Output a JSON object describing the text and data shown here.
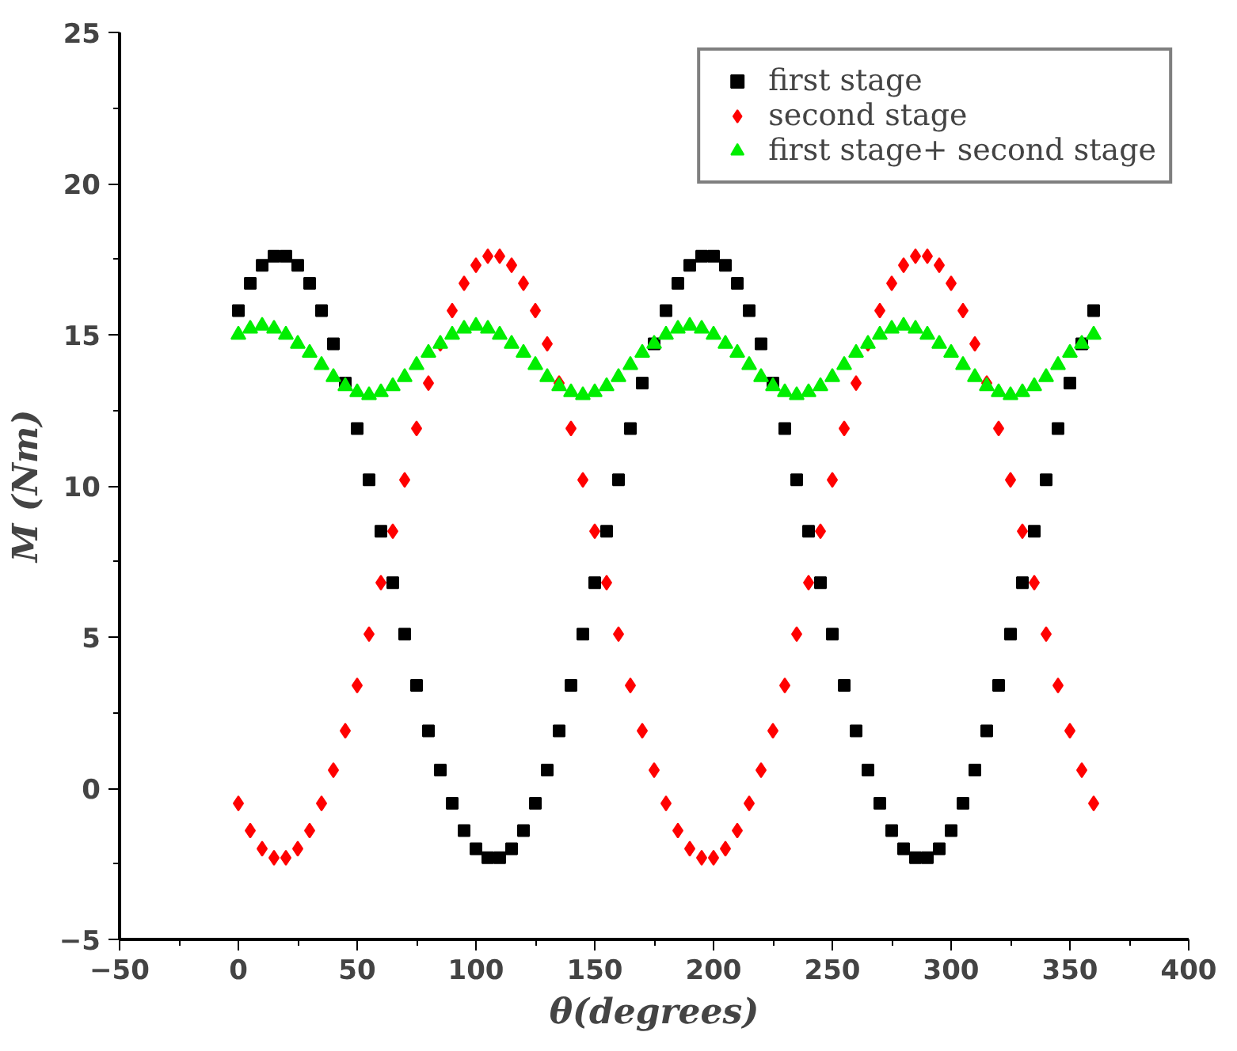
{
  "chart_data": {
    "type": "scatter",
    "xlabel": "θ(degrees)",
    "ylabel": "M (Nm)",
    "x": [
      0,
      5,
      10,
      15,
      20,
      25,
      30,
      35,
      40,
      45,
      50,
      55,
      60,
      65,
      70,
      75,
      80,
      85,
      90,
      95,
      100,
      105,
      110,
      115,
      120,
      125,
      130,
      135,
      140,
      145,
      150,
      155,
      160,
      165,
      170,
      175,
      180,
      185,
      190,
      195,
      200,
      205,
      210,
      215,
      220,
      225,
      230,
      235,
      240,
      245,
      250,
      255,
      260,
      265,
      270,
      275,
      280,
      285,
      290,
      295,
      300,
      305,
      310,
      315,
      320,
      325,
      330,
      335,
      340,
      345,
      350,
      355,
      360
    ],
    "series": [
      {
        "name": "first stage",
        "color": "#000000",
        "marker": "square",
        "values": [
          15.8,
          16.7,
          17.3,
          17.6,
          17.6,
          17.3,
          16.7,
          15.8,
          14.7,
          13.4,
          11.9,
          10.2,
          8.5,
          6.8,
          5.1,
          3.4,
          1.9,
          0.6,
          -0.5,
          -1.4,
          -2.0,
          -2.3,
          -2.3,
          -2.0,
          -1.4,
          -0.5,
          0.6,
          1.9,
          3.4,
          5.1,
          6.8,
          8.5,
          10.2,
          11.9,
          13.4,
          14.7,
          15.8,
          16.7,
          17.3,
          17.6,
          17.6,
          17.3,
          16.7,
          15.8,
          14.7,
          13.4,
          11.9,
          10.2,
          8.5,
          6.8,
          5.1,
          3.4,
          1.9,
          0.6,
          -0.5,
          -1.4,
          -2.0,
          -2.3,
          -2.3,
          -2.0,
          -1.4,
          -0.5,
          0.6,
          1.9,
          3.4,
          5.1,
          6.8,
          8.5,
          10.2,
          11.9,
          13.4,
          14.7,
          15.8
        ]
      },
      {
        "name": "second stage",
        "color": "#ff0000",
        "marker": "diamond",
        "values": [
          -0.5,
          -1.4,
          -2.0,
          -2.3,
          -2.3,
          -2.0,
          -1.4,
          -0.5,
          0.6,
          1.9,
          3.4,
          5.1,
          6.8,
          8.5,
          10.2,
          11.9,
          13.4,
          14.7,
          15.8,
          16.7,
          17.3,
          17.6,
          17.6,
          17.3,
          16.7,
          15.8,
          14.7,
          13.4,
          11.9,
          10.2,
          8.5,
          6.8,
          5.1,
          3.4,
          1.9,
          0.6,
          -0.5,
          -1.4,
          -2.0,
          -2.3,
          -2.3,
          -2.0,
          -1.4,
          -0.5,
          0.6,
          1.9,
          3.4,
          5.1,
          6.8,
          8.5,
          10.2,
          11.9,
          13.4,
          14.7,
          15.8,
          16.7,
          17.3,
          17.6,
          17.6,
          17.3,
          16.7,
          15.8,
          14.7,
          13.4,
          11.9,
          10.2,
          8.5,
          6.8,
          5.1,
          3.4,
          1.9,
          0.6,
          -0.5
        ]
      },
      {
        "name": "first stage+ second stage",
        "color": "#00ee00",
        "marker": "triangle",
        "values": [
          15.0,
          15.2,
          15.3,
          15.2,
          15.0,
          14.7,
          14.4,
          14.0,
          13.6,
          13.3,
          13.1,
          13.0,
          13.1,
          13.3,
          13.6,
          14.0,
          14.4,
          14.7,
          15.0,
          15.2,
          15.3,
          15.2,
          15.0,
          14.7,
          14.4,
          14.0,
          13.6,
          13.3,
          13.1,
          13.0,
          13.1,
          13.3,
          13.6,
          14.0,
          14.4,
          14.7,
          15.0,
          15.2,
          15.3,
          15.2,
          15.0,
          14.7,
          14.4,
          14.0,
          13.6,
          13.3,
          13.1,
          13.0,
          13.1,
          13.3,
          13.6,
          14.0,
          14.4,
          14.7,
          15.0,
          15.2,
          15.3,
          15.2,
          15.0,
          14.7,
          14.4,
          14.0,
          13.6,
          13.3,
          13.1,
          13.0,
          13.1,
          13.3,
          13.6,
          14.0,
          14.4,
          14.7,
          15.0
        ]
      }
    ],
    "xlim": [
      -50,
      400
    ],
    "xticks": [
      -50,
      0,
      50,
      100,
      150,
      200,
      250,
      300,
      350,
      400
    ],
    "ylim": [
      -5,
      25
    ],
    "yticks": [
      -5,
      0,
      5,
      10,
      15,
      20,
      25
    ],
    "grid": false,
    "legend": "top right"
  }
}
